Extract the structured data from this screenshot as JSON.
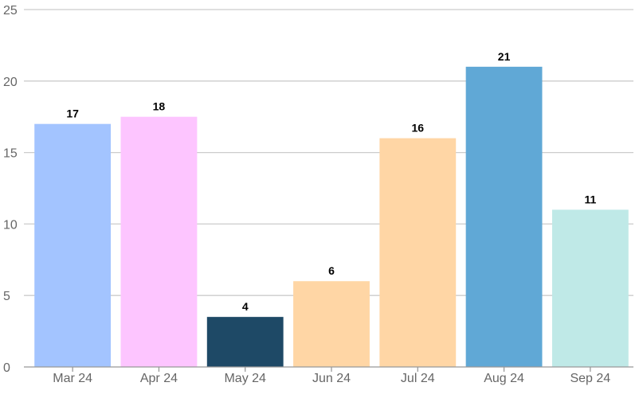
{
  "chart_data": {
    "type": "bar",
    "title": "",
    "xlabel": "",
    "ylabel": "",
    "categories": [
      "Mar 24",
      "Apr 24",
      "May 24",
      "Jun 24",
      "Jul 24",
      "Aug 24",
      "Sep 24"
    ],
    "values": [
      17,
      17.5,
      3.5,
      6,
      16,
      21,
      11
    ],
    "data_labels": [
      "17",
      "18",
      "4",
      "6",
      "16",
      "21",
      "11"
    ],
    "colors": [
      "#a3c4ff",
      "#fdc5ff",
      "#1e4966",
      "#ffd6a5",
      "#ffd6a5",
      "#60a8d6",
      "#bfe9e7"
    ],
    "ylim": [
      0,
      25
    ],
    "yticks": [
      0,
      5,
      10,
      15,
      20,
      25
    ],
    "grid": true,
    "legend": "none"
  }
}
